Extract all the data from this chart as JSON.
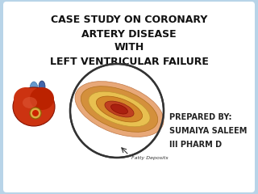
{
  "title_line1": "CASE STUDY ON CORONARY",
  "title_line2": "ARTERY DISEASE",
  "title_line3": "WITH",
  "title_line4": "LEFT VENTRICULAR FAILURE",
  "prepared_by": "PREPARED BY:",
  "name": "SUMAIYA SALEEM",
  "degree": "III PHARM D",
  "fatty_deposits_label": "Fatty Deposits",
  "bg_color": "#b8d4e8",
  "inner_bg": "#ffffff",
  "title_color": "#111111",
  "prepared_color": "#222222",
  "title_fontsize": 9.0,
  "prepared_fontsize": 7.0,
  "label_fontsize": 4.5
}
